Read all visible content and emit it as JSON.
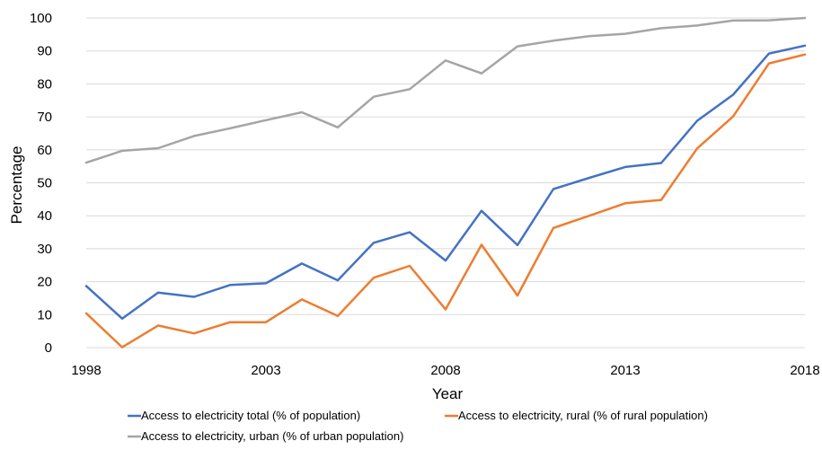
{
  "chart_data": {
    "type": "line",
    "title": "",
    "xlabel": "Year",
    "ylabel": "Percentage",
    "x": [
      1998,
      1999,
      2000,
      2001,
      2002,
      2003,
      2004,
      2005,
      2006,
      2007,
      2008,
      2009,
      2010,
      2011,
      2012,
      2013,
      2014,
      2015,
      2016,
      2017,
      2018
    ],
    "x_ticks": [
      "1998",
      "2003",
      "2008",
      "2013",
      "2018"
    ],
    "y_ticks": [
      "0",
      "10",
      "20",
      "30",
      "40",
      "50",
      "60",
      "70",
      "80",
      "90",
      "100"
    ],
    "xlim": [
      1998,
      2018
    ],
    "ylim": [
      0,
      100
    ],
    "grid": "horizontal",
    "legend_position": "bottom",
    "series": [
      {
        "name": "Access to electricity total (% of population)",
        "color": "#4472C4",
        "values": [
          18.7,
          8.8,
          16.7,
          15.4,
          19.0,
          19.5,
          25.5,
          20.4,
          31.8,
          35.0,
          26.4,
          41.5,
          31.1,
          48.1,
          51.5,
          54.8,
          56.0,
          68.8,
          76.7,
          89.2,
          91.6
        ]
      },
      {
        "name": "Access to electricity, rural (% of rural population)",
        "color": "#ED7D31",
        "values": [
          10.4,
          0.1,
          6.7,
          4.3,
          7.7,
          7.7,
          14.6,
          9.6,
          21.2,
          24.8,
          11.6,
          31.2,
          15.8,
          36.3,
          40.0,
          43.8,
          44.8,
          60.4,
          70.1,
          86.2,
          88.9
        ]
      },
      {
        "name": "Access to electricity, urban (% of urban population)",
        "color": "#A5A5A5",
        "values": [
          56.1,
          59.7,
          60.5,
          64.2,
          66.5,
          69.0,
          71.4,
          66.8,
          76.1,
          78.4,
          87.1,
          83.2,
          91.4,
          93.1,
          94.5,
          95.2,
          96.9,
          97.7,
          99.2,
          99.3,
          100.0
        ]
      }
    ]
  }
}
